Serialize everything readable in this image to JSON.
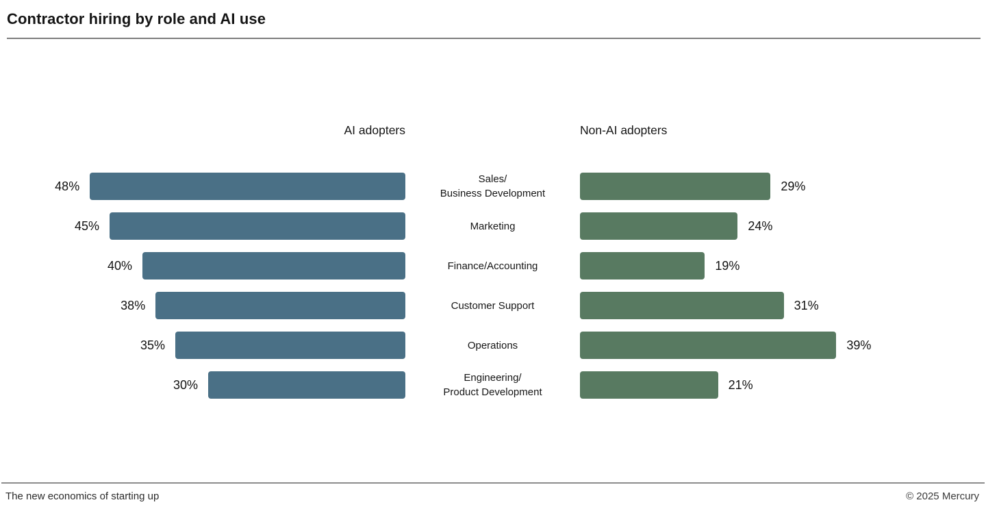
{
  "title": "Contractor hiring by role and AI use",
  "chart_data": {
    "type": "bar",
    "orientation": "horizontal",
    "layout": "diverging-two-panel",
    "title": "Contractor hiring by role and AI use",
    "categories": [
      "Sales/\nBusiness Development",
      "Marketing",
      "Finance/Accounting",
      "Customer Support",
      "Operations",
      "Engineering/\nProduct Development"
    ],
    "series": [
      {
        "name": "AI adopters",
        "values": [
          48,
          45,
          40,
          38,
          35,
          30
        ],
        "color": "#4a7086",
        "bar_alignment": "right",
        "value_label_position": "left-of-bar"
      },
      {
        "name": "Non-AI adopters",
        "values": [
          29,
          24,
          19,
          31,
          39,
          21
        ],
        "color": "#587a61",
        "bar_alignment": "left",
        "value_label_position": "right-of-bar"
      }
    ],
    "value_suffix": "%",
    "axis_range": [
      0,
      50
    ],
    "grid": false,
    "legend_position": "column-headers-above-panels"
  },
  "footer": {
    "left": "The new economics of starting up",
    "right": "© 2025 Mercury"
  },
  "colors": {
    "ai_adopters_bar": "#4a7086",
    "non_ai_adopters_bar": "#587a61",
    "title_text": "#151515",
    "rule": "#7d7d7d",
    "background": "#ffffff"
  }
}
